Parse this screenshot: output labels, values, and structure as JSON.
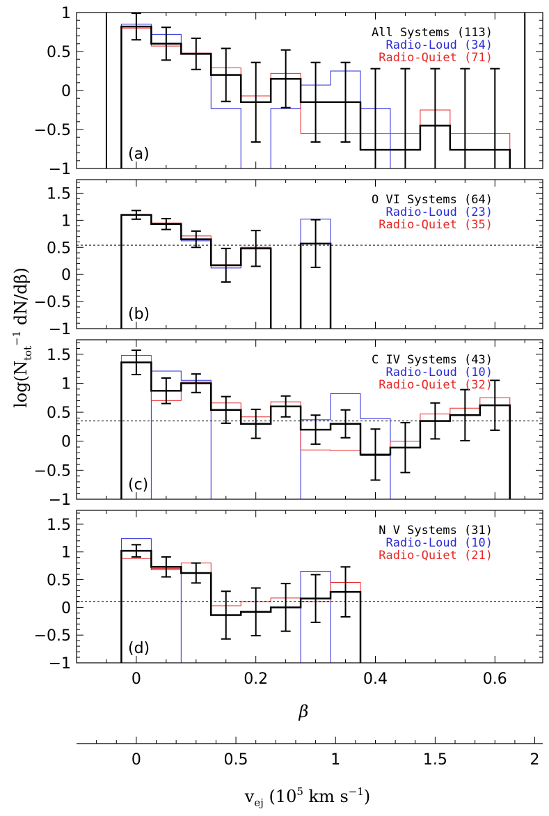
{
  "chart_data": {
    "type": "step",
    "x_axis": {
      "label": "β",
      "range": [
        -0.1,
        0.68
      ],
      "ticks": [
        0,
        0.2,
        0.4,
        0.6
      ],
      "tick_labels": [
        "0",
        "0.2",
        "0.4",
        "0.6"
      ]
    },
    "secondary_x_axis": {
      "label_parts": [
        "v",
        "ej",
        " (10",
        "5",
        " km s",
        "−1",
        ")"
      ],
      "range": [
        -0.3,
        2.04
      ],
      "ticks": [
        0,
        0.5,
        1,
        1.5,
        2
      ],
      "tick_labels": [
        "0",
        "0.5",
        "1",
        "1.5",
        "2"
      ]
    },
    "y_axis": {
      "label_parts": [
        "log(N",
        "tot",
        "−1",
        " dN/dβ)"
      ],
      "range": [
        -1,
        1.0
      ],
      "tick_labels": [
        "−1",
        "−0.5",
        "0",
        "0.5",
        "1",
        "1.5"
      ]
    },
    "series_colors": {
      "all": "#000000",
      "radio_loud": "#2a2ad8",
      "radio_quiet": "#e62828"
    },
    "bin_edges": [
      -0.025,
      0.025,
      0.075,
      0.125,
      0.175,
      0.225,
      0.275,
      0.325,
      0.375,
      0.425,
      0.475,
      0.525,
      0.575,
      0.625
    ],
    "bin_centers": [
      0,
      0.05,
      0.1,
      0.15,
      0.2,
      0.25,
      0.3,
      0.35,
      0.4,
      0.45,
      0.5,
      0.55,
      0.6
    ],
    "panels": [
      {
        "tag": "(a)",
        "ylim": [
          -1,
          1.0
        ],
        "yticks": [
          -1,
          -0.5,
          0,
          0.5,
          1
        ],
        "reference_line": null,
        "vertical_lines": [
          -0.05,
          0.65
        ],
        "legend": [
          {
            "text": "All Systems (113)",
            "color": "#000000"
          },
          {
            "text": "Radio-Loud (34)",
            "color": "#2a2ad8"
          },
          {
            "text": "Radio-Quiet (71)",
            "color": "#e62828"
          }
        ],
        "all": [
          0.82,
          0.6,
          0.47,
          0.2,
          -0.15,
          0.15,
          -0.15,
          -0.15,
          -0.76,
          -0.76,
          -0.45,
          -0.76,
          -0.76
        ],
        "all_err": [
          0.17,
          0.21,
          0.2,
          0.34,
          0.51,
          0.37,
          0.51,
          0.51,
          1.04,
          1.04,
          0.73,
          1.04,
          1.04
        ],
        "radio_loud": [
          0.85,
          0.72,
          0.48,
          -0.23,
          null,
          -0.23,
          0.07,
          0.25,
          -0.23,
          null,
          null,
          null,
          null
        ],
        "radio_quiet": [
          0.8,
          0.57,
          0.48,
          0.29,
          -0.07,
          0.22,
          -0.55,
          -0.55,
          -0.55,
          -0.55,
          -0.25,
          -0.55,
          -0.55
        ]
      },
      {
        "tag": "(b)",
        "ylim": [
          -1,
          1.75
        ],
        "yticks": [
          -1,
          -0.5,
          0,
          0.5,
          1,
          1.5
        ],
        "reference_line": 0.54,
        "vertical_lines": [],
        "legend": [
          {
            "text": "O VI Systems (64)",
            "color": "#000000"
          },
          {
            "text": "Radio-Loud (23)",
            "color": "#2a2ad8"
          },
          {
            "text": "Radio-Quiet (35)",
            "color": "#e62828"
          }
        ],
        "all": [
          1.1,
          0.93,
          0.65,
          0.17,
          0.48,
          null,
          0.57,
          null,
          null,
          null,
          null,
          null,
          null
        ],
        "all_err": [
          0.08,
          0.1,
          0.15,
          0.31,
          0.33,
          null,
          0.44,
          null,
          null,
          null,
          null,
          null,
          null
        ],
        "radio_loud": [
          1.1,
          0.92,
          0.62,
          0.12,
          0.5,
          null,
          1.02,
          null,
          null,
          null,
          null,
          null,
          null
        ],
        "radio_quiet": [
          1.1,
          0.95,
          0.71,
          0.18,
          0.5,
          null,
          null,
          null,
          null,
          null,
          null,
          null,
          null
        ]
      },
      {
        "tag": "(c)",
        "ylim": [
          -1,
          1.75
        ],
        "yticks": [
          -1,
          -0.5,
          0,
          0.5,
          1,
          1.5
        ],
        "reference_line": 0.35,
        "vertical_lines": [],
        "legend": [
          {
            "text": "C IV Systems (43)",
            "color": "#000000"
          },
          {
            "text": "Radio-Loud (10)",
            "color": "#2a2ad8"
          },
          {
            "text": "Radio-Quiet (32)",
            "color": "#e62828"
          }
        ],
        "all": [
          1.36,
          0.87,
          1.0,
          0.54,
          0.3,
          0.6,
          0.2,
          0.3,
          -0.23,
          -0.11,
          0.35,
          0.45,
          0.62
        ],
        "all_err": [
          0.21,
          0.22,
          0.16,
          0.23,
          0.25,
          0.18,
          0.25,
          0.24,
          0.44,
          0.43,
          0.31,
          0.44,
          0.43
        ],
        "radio_loud": [
          null,
          1.21,
          1.05,
          null,
          null,
          null,
          0.37,
          0.82,
          0.39,
          null,
          null,
          null,
          null
        ],
        "radio_quiet": [
          1.48,
          0.7,
          1.02,
          0.66,
          0.42,
          0.68,
          -0.15,
          -0.16,
          -0.25,
          0.0,
          0.47,
          0.57,
          0.75
        ]
      },
      {
        "tag": "(d)",
        "ylim": [
          -1,
          1.75
        ],
        "yticks": [
          -1,
          -0.5,
          0,
          0.5,
          1,
          1.5
        ],
        "reference_line": 0.11,
        "vertical_lines": [],
        "legend": [
          {
            "text": "N V Systems (31)",
            "color": "#000000"
          },
          {
            "text": "Radio-Loud (10)",
            "color": "#2a2ad8"
          },
          {
            "text": "Radio-Quiet (21)",
            "color": "#e62828"
          }
        ],
        "all": [
          1.02,
          0.73,
          0.62,
          -0.14,
          -0.08,
          0.0,
          0.16,
          0.28,
          null,
          null,
          null,
          null,
          null
        ],
        "all_err": [
          0.11,
          0.18,
          0.18,
          0.43,
          0.43,
          0.43,
          0.43,
          0.45,
          null,
          null,
          null,
          null,
          null
        ],
        "radio_loud": [
          1.24,
          0.68,
          null,
          null,
          null,
          null,
          0.65,
          null,
          null,
          null,
          null,
          null,
          null
        ],
        "radio_quiet": [
          0.88,
          0.7,
          0.8,
          0.03,
          0.1,
          0.17,
          0.1,
          0.45,
          null,
          null,
          null,
          null,
          null
        ]
      }
    ]
  }
}
